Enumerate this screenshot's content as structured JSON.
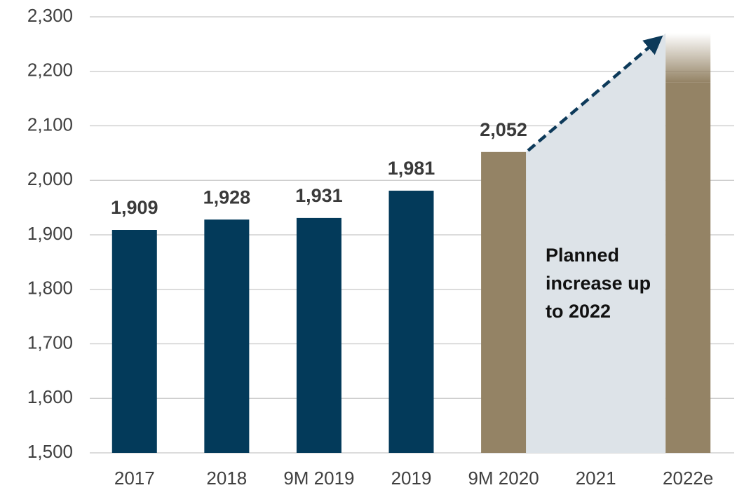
{
  "chart_data": {
    "type": "bar",
    "categories": [
      "2017",
      "2018",
      "9M 2019",
      "2019",
      "9M 2020",
      "2021",
      "2022e"
    ],
    "values": [
      1909,
      1928,
      1931,
      1981,
      2052,
      null,
      2270
    ],
    "value_labels": [
      "1,909",
      "1,928",
      "1,931",
      "1,981",
      "2,052",
      null,
      null
    ],
    "colors": [
      "#033a5a",
      "#033a5a",
      "#033a5a",
      "#033a5a",
      "#948365",
      null,
      "#948365"
    ],
    "ylim": [
      1500,
      2300
    ],
    "yticks": [
      {
        "value": 1500,
        "label": "1,500"
      },
      {
        "value": 1600,
        "label": "1,600"
      },
      {
        "value": 1700,
        "label": "1,700"
      },
      {
        "value": 1800,
        "label": "1,800"
      },
      {
        "value": 1900,
        "label": "1,900"
      },
      {
        "value": 2000,
        "label": "2,000"
      },
      {
        "value": 2100,
        "label": "2,100"
      },
      {
        "value": 2200,
        "label": "2,200"
      },
      {
        "value": 2300,
        "label": "2,300"
      }
    ],
    "grid": true,
    "annotation": "Planned increase up to 2022"
  }
}
